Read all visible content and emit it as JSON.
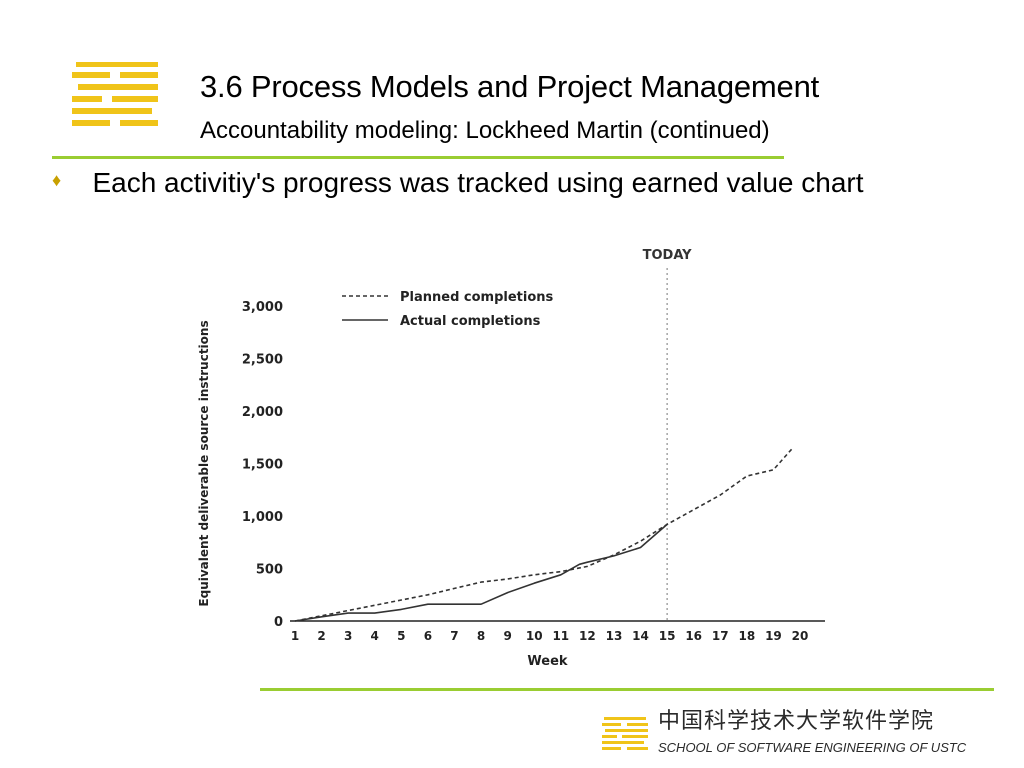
{
  "slide": {
    "title": "3.6 Process Models and Project  Management",
    "subtitle": "Accountability modeling: Lockheed Martin (continued)",
    "bullet": "Each activitiy's progress was tracked using earned value chart",
    "accent_color": "#9acd32",
    "logo_color": "#f0c419"
  },
  "footer": {
    "school_cn": "中国科学技术大学软件学院",
    "school_en": "SCHOOL OF SOFTWARE ENGINEERING OF USTC"
  },
  "chart_data": {
    "type": "line",
    "ylabel": "Equivalent deliverable source instructions",
    "xlabel": "Week",
    "x": [
      1,
      2,
      3,
      4,
      5,
      6,
      7,
      8,
      9,
      10,
      11,
      12,
      13,
      14,
      15,
      16,
      17,
      18,
      19,
      20
    ],
    "xlim": [
      1,
      20
    ],
    "ylim": [
      0,
      3000
    ],
    "y_ticks": [
      {
        "value": 0,
        "label": "0"
      },
      {
        "value": 500,
        "label": "500"
      },
      {
        "value": 1000,
        "label": "1,000"
      },
      {
        "value": 1500,
        "label": "1,500"
      },
      {
        "value": 2000,
        "label": "2,000"
      },
      {
        "value": 2500,
        "label": "2,500"
      },
      {
        "value": 3000,
        "label": "3,000"
      }
    ],
    "legend_position": "top-left",
    "marker": {
      "x": 15,
      "label": "TODAY"
    },
    "series": [
      {
        "name": "Planned completions",
        "style": "dashed",
        "x": [
          1,
          2,
          3,
          4,
          5,
          6,
          7,
          8,
          9,
          10,
          11,
          12,
          13,
          14,
          15,
          16,
          17,
          18,
          19,
          19.7
        ],
        "values": [
          0,
          50,
          100,
          150,
          200,
          250,
          310,
          370,
          400,
          440,
          470,
          520,
          630,
          760,
          920,
          1060,
          1200,
          1380,
          1440,
          1640
        ]
      },
      {
        "name": "Actual completions",
        "style": "solid",
        "x": [
          1,
          2,
          3,
          4,
          5,
          6,
          7,
          8,
          9,
          10,
          11,
          11.7,
          12,
          13,
          14,
          15
        ],
        "values": [
          0,
          40,
          75,
          75,
          110,
          160,
          160,
          160,
          270,
          360,
          440,
          540,
          560,
          620,
          700,
          920
        ]
      }
    ]
  }
}
